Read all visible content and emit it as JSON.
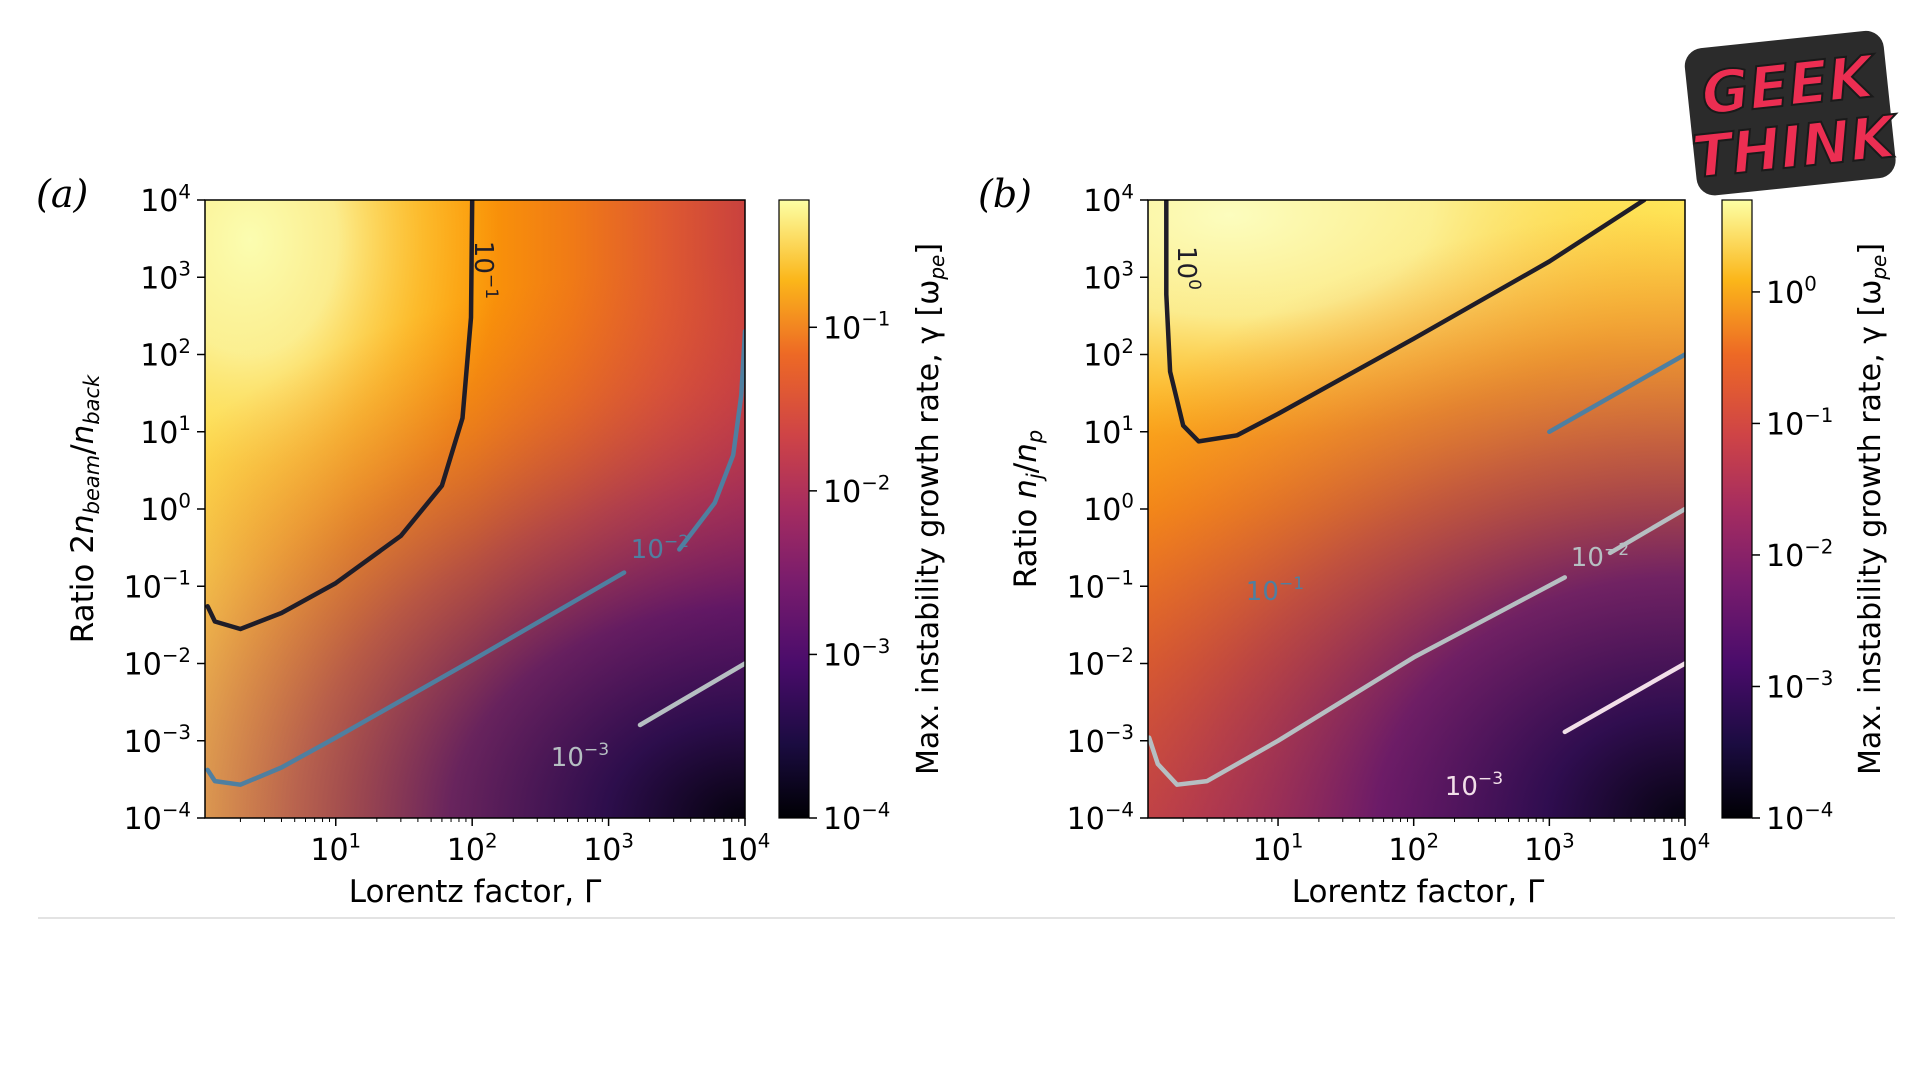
{
  "colorbar_scale": "log",
  "colormap": "inferno",
  "colors": {
    "background": "#ffffff",
    "contour_1e-1": "#1f1d28",
    "contour_1e-2": "#4f7fa0",
    "contour_1e-3": "#b6bfc2",
    "contour_1e-4": "#f2dfe9",
    "logo_fill": "#ec2e52",
    "logo_outline": "#2b2b2b"
  },
  "logo": {
    "line1": "GEEK",
    "line2": "THINK"
  },
  "chart_data": [
    {
      "type": "heatmap",
      "panel_label": "(a)",
      "xlabel": "Lorentz factor, Γ",
      "ylabel": "Ratio 2n_beam/n_back",
      "ylabel_parts": {
        "prefix": "Ratio 2",
        "n1": "n",
        "s1": "beam",
        "slash": "/",
        "n2": "n",
        "s2": "back"
      },
      "xscale": "log",
      "yscale": "log",
      "xlim": [
        1.1,
        10000
      ],
      "ylim": [
        0.0001,
        10000
      ],
      "x_ticks": [
        {
          "base": "10",
          "exp": "1"
        },
        {
          "base": "10",
          "exp": "2"
        },
        {
          "base": "10",
          "exp": "3"
        },
        {
          "base": "10",
          "exp": "4"
        }
      ],
      "y_ticks": [
        {
          "base": "10",
          "exp": "−4"
        },
        {
          "base": "10",
          "exp": "−3"
        },
        {
          "base": "10",
          "exp": "−2"
        },
        {
          "base": "10",
          "exp": "−1"
        },
        {
          "base": "10",
          "exp": "0"
        },
        {
          "base": "10",
          "exp": "1"
        },
        {
          "base": "10",
          "exp": "2"
        },
        {
          "base": "10",
          "exp": "3"
        },
        {
          "base": "10",
          "exp": "4"
        }
      ],
      "colorbar": {
        "label": "Max. instability growth rate, γ [ω_pe]",
        "label_parts": {
          "prefix": "Max. instability growth rate, γ [ω",
          "sub": "pe",
          "suffix": "]"
        },
        "range": [
          0.0001,
          0.6
        ],
        "ticks": [
          {
            "base": "10",
            "exp": "−4"
          },
          {
            "base": "10",
            "exp": "−3"
          },
          {
            "base": "10",
            "exp": "−2"
          },
          {
            "base": "10",
            "exp": "−1"
          }
        ]
      },
      "contours": [
        {
          "level": "10^-1",
          "label": {
            "base": "10",
            "exp": "−1"
          },
          "color": "#1f1d28",
          "points": [
            [
              1.15,
              0.055
            ],
            [
              1.3,
              0.035
            ],
            [
              2,
              0.028
            ],
            [
              4,
              0.045
            ],
            [
              10,
              0.11
            ],
            [
              30,
              0.45
            ],
            [
              60,
              2
            ],
            [
              85,
              15
            ],
            [
              98,
              300
            ],
            [
              100,
              10000
            ]
          ]
        },
        {
          "level": "10^-2",
          "label": {
            "base": "10",
            "exp": "−2"
          },
          "color": "#4f7fa0",
          "points": [
            [
              1.15,
              0.00042
            ],
            [
              1.3,
              0.0003
            ],
            [
              2,
              0.00027
            ],
            [
              4,
              0.00045
            ],
            [
              10,
              0.0011
            ],
            [
              100,
              0.011
            ],
            [
              1300,
              0.15
            ]
          ]
        },
        {
          "level": "10^-2",
          "label": {
            "base": "10",
            "exp": "−2"
          },
          "color": "#4f7fa0",
          "points": [
            [
              3300,
              0.3
            ],
            [
              6000,
              1.2
            ],
            [
              8200,
              5
            ],
            [
              9400,
              30
            ],
            [
              10000,
              200
            ]
          ]
        },
        {
          "level": "10^-3",
          "label": {
            "base": "10",
            "exp": "−3"
          },
          "color": "#b6bfc2",
          "points": [
            [
              1700,
              0.0016
            ],
            [
              10000,
              0.01
            ]
          ]
        }
      ]
    },
    {
      "type": "heatmap",
      "panel_label": "(b)",
      "xlabel": "Lorentz factor, Γ",
      "ylabel": "Ratio n_j/n_p",
      "ylabel_parts": {
        "prefix": "Ratio ",
        "n1": "n",
        "s1": "j",
        "slash": "/",
        "n2": "n",
        "s2": "p"
      },
      "xscale": "log",
      "yscale": "log",
      "xlim": [
        1.1,
        10000
      ],
      "ylim": [
        0.0001,
        10000
      ],
      "x_ticks": [
        {
          "base": "10",
          "exp": "1"
        },
        {
          "base": "10",
          "exp": "2"
        },
        {
          "base": "10",
          "exp": "3"
        },
        {
          "base": "10",
          "exp": "4"
        }
      ],
      "y_ticks": [
        {
          "base": "10",
          "exp": "−4"
        },
        {
          "base": "10",
          "exp": "−3"
        },
        {
          "base": "10",
          "exp": "−2"
        },
        {
          "base": "10",
          "exp": "−1"
        },
        {
          "base": "10",
          "exp": "0"
        },
        {
          "base": "10",
          "exp": "1"
        },
        {
          "base": "10",
          "exp": "2"
        },
        {
          "base": "10",
          "exp": "3"
        },
        {
          "base": "10",
          "exp": "4"
        }
      ],
      "colorbar": {
        "label": "Max. instability growth rate, γ [ω_pe]",
        "label_parts": {
          "prefix": "Max. instability growth rate, γ [ω",
          "sub": "pe",
          "suffix": "]"
        },
        "range": [
          0.0001,
          5
        ],
        "ticks": [
          {
            "base": "10",
            "exp": "−4"
          },
          {
            "base": "10",
            "exp": "−3"
          },
          {
            "base": "10",
            "exp": "−2"
          },
          {
            "base": "10",
            "exp": "−1"
          },
          {
            "base": "10",
            "exp": "0"
          }
        ]
      },
      "contours": [
        {
          "level": "10^0",
          "label": {
            "base": "10",
            "exp": "0"
          },
          "color": "#1f1d28",
          "points": [
            [
              1.5,
              10000
            ],
            [
              1.5,
              600
            ],
            [
              1.6,
              60
            ],
            [
              2,
              12
            ],
            [
              2.6,
              7.5
            ],
            [
              5,
              9
            ],
            [
              10,
              17
            ],
            [
              100,
              160
            ],
            [
              1000,
              1600
            ],
            [
              5000,
              10000
            ]
          ]
        },
        {
          "level": "10^-1",
          "label": {
            "base": "10",
            "exp": "−1"
          },
          "color": "#4f7fa0",
          "points": [
            [
              1000,
              10
            ],
            [
              10000,
              100
            ]
          ]
        },
        {
          "level": "10^-2",
          "label": {
            "base": "10",
            "exp": "−2"
          },
          "color": "#b6bfc2",
          "points": [
            [
              1.12,
              0.0011
            ],
            [
              1.3,
              0.0005
            ],
            [
              1.8,
              0.00027
            ],
            [
              3,
              0.0003
            ],
            [
              10,
              0.001
            ],
            [
              100,
              0.012
            ],
            [
              1300,
              0.13
            ]
          ]
        },
        {
          "level": "10^-2",
          "label": {
            "base": "10",
            "exp": "−2"
          },
          "color": "#b6bfc2",
          "points": [
            [
              2800,
              0.27
            ],
            [
              10000,
              1
            ]
          ]
        },
        {
          "level": "10^-3",
          "label": {
            "base": "10",
            "exp": "−3"
          },
          "color": "#f2dfe9",
          "points": [
            [
              1300,
              0.0013
            ],
            [
              10000,
              0.01
            ]
          ]
        }
      ]
    }
  ]
}
